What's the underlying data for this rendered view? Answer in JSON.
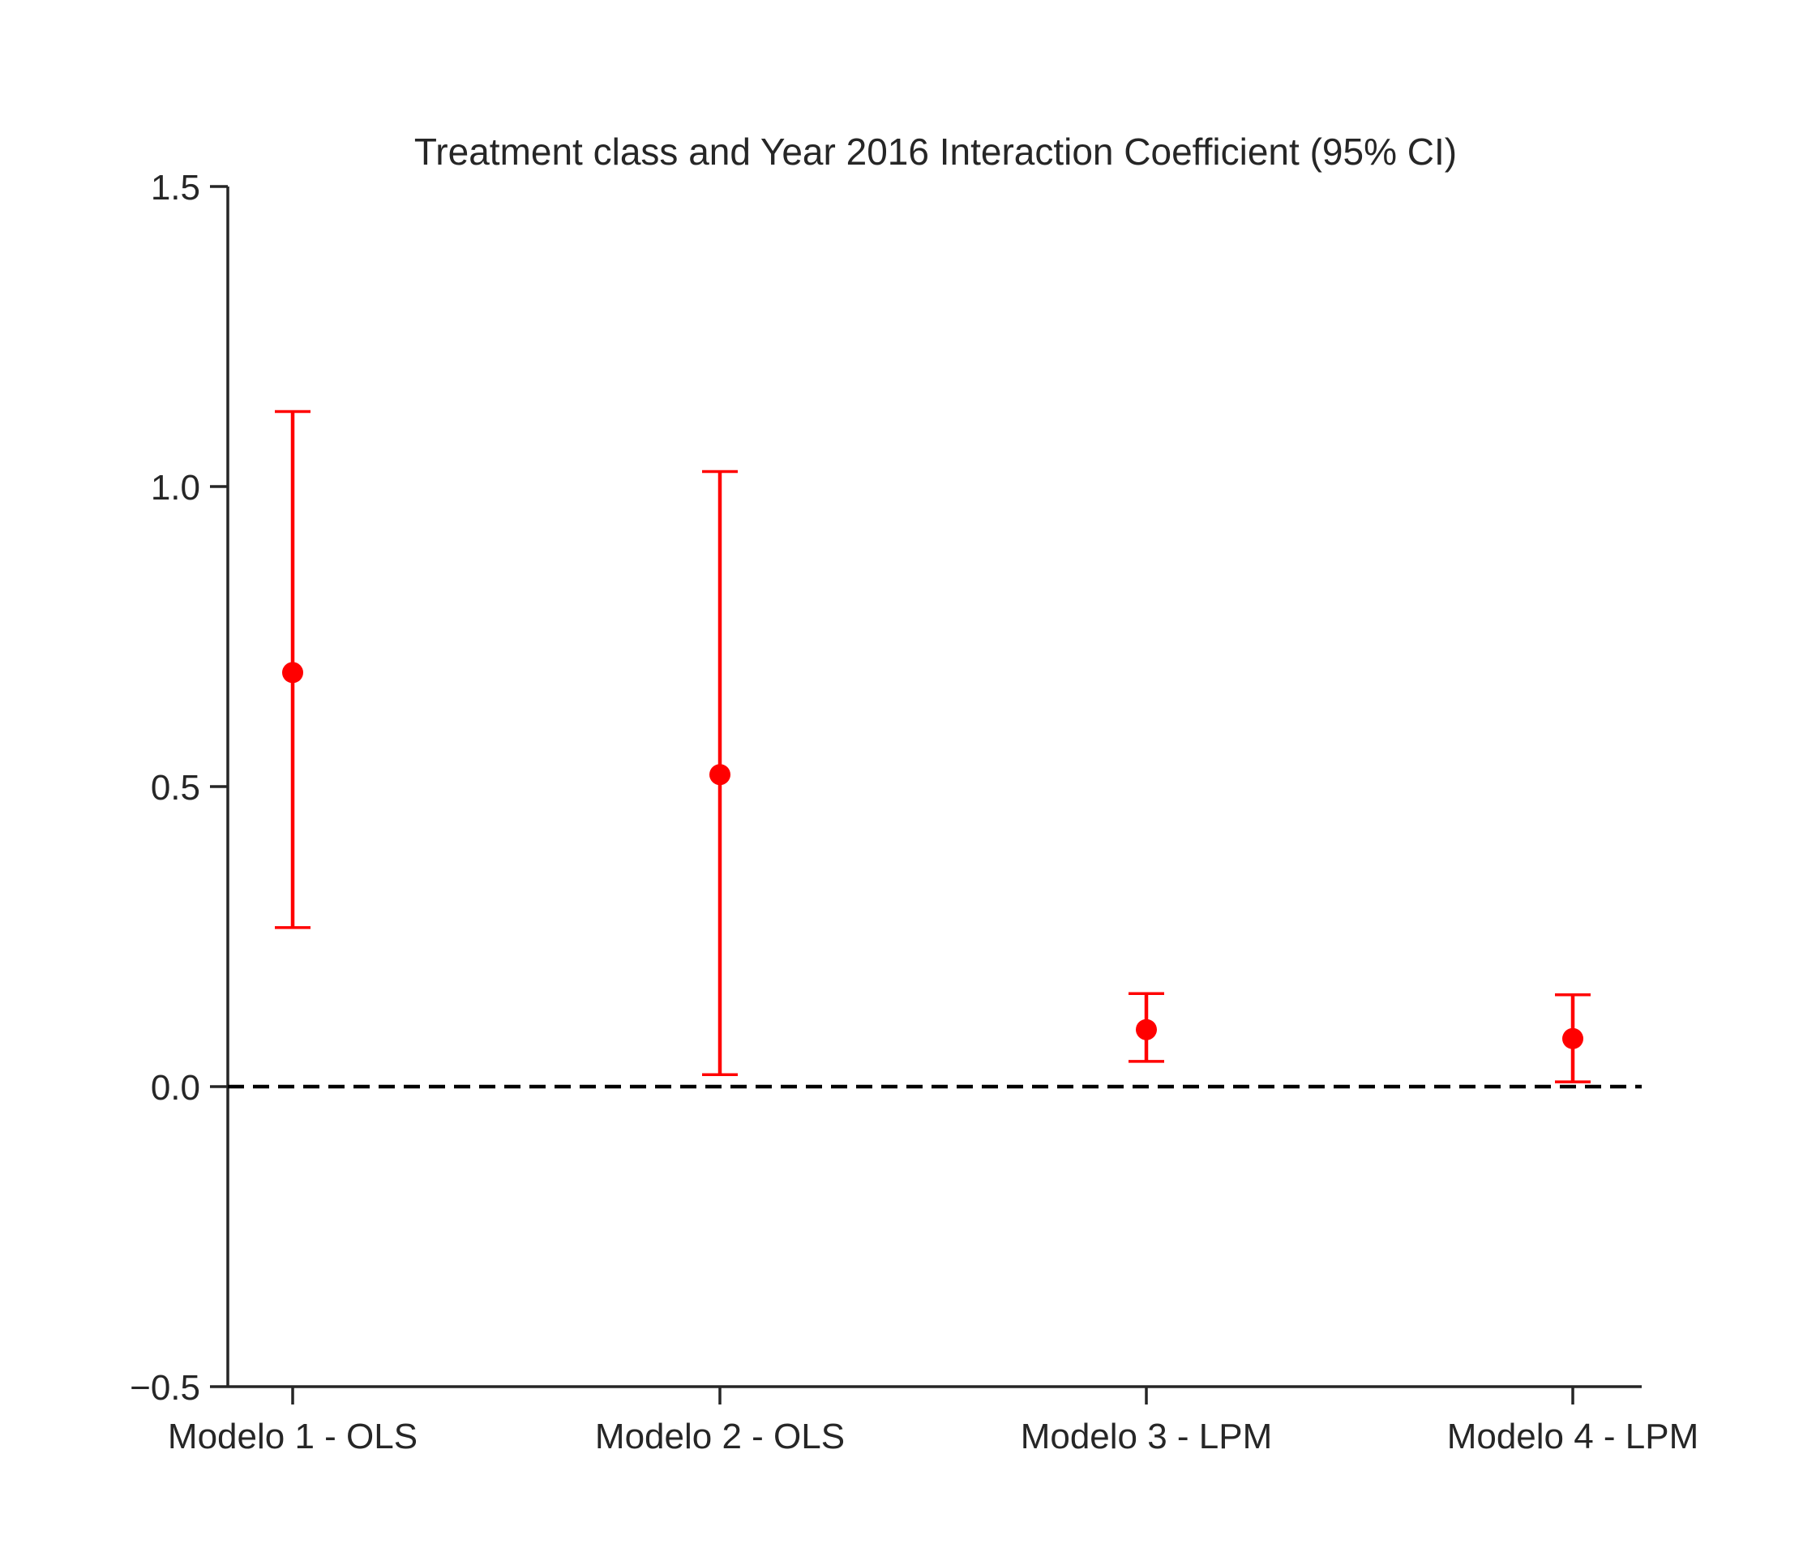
{
  "chart_data": {
    "type": "scatter",
    "title": "Treatment class and Year 2016 Interaction Coefficient (95% CI)",
    "xlabel": "",
    "ylabel": "",
    "categories": [
      "Modelo 1 - OLS",
      "Modelo 2 - OLS",
      "Modelo 3 - LPM",
      "Modelo 4 - LPM"
    ],
    "series": [
      {
        "values": [
          0.69,
          0.52,
          0.095,
          0.08
        ],
        "ci_lower": [
          0.265,
          0.02,
          0.042,
          0.008
        ],
        "ci_upper": [
          1.125,
          1.025,
          0.155,
          0.153
        ]
      }
    ],
    "ylim": [
      -0.5,
      1.5
    ],
    "yticks": [
      -0.5,
      0.0,
      0.5,
      1.0,
      1.5
    ],
    "ytick_labels": [
      "−0.5",
      "0.0",
      "0.5",
      "1.0",
      "1.5"
    ],
    "reference_line": 0.0,
    "grid": false,
    "legend": "none",
    "colors": {
      "points": "#ff0000",
      "reference_line": "#000000",
      "axes": "#262626"
    }
  }
}
